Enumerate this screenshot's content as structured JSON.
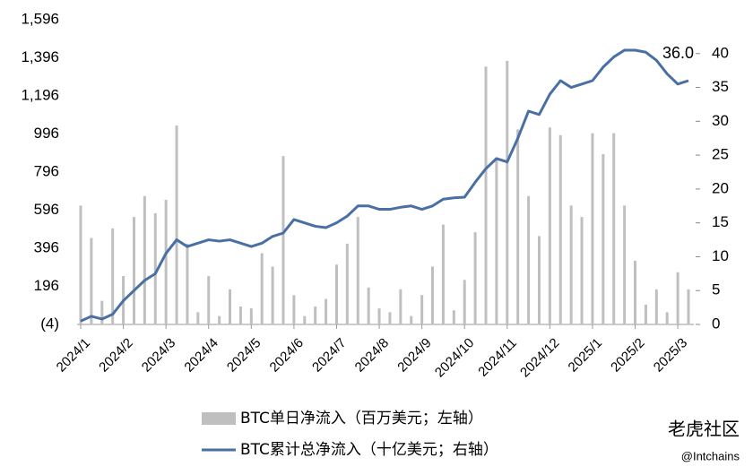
{
  "chart_data": {
    "type": "bar-line",
    "categories": [
      "2024/1",
      null,
      null,
      null,
      "2024/2",
      null,
      null,
      null,
      "2024/3",
      null,
      null,
      null,
      "2024/4",
      null,
      null,
      null,
      "2024/5",
      null,
      null,
      null,
      "2024/6",
      null,
      null,
      null,
      "2024/7",
      null,
      null,
      null,
      "2024/8",
      null,
      null,
      null,
      "2024/9",
      null,
      null,
      null,
      "2024/10",
      null,
      null,
      null,
      "2024/11",
      null,
      null,
      null,
      "2024/12",
      null,
      null,
      null,
      "2025/1",
      null,
      null,
      null,
      "2025/2",
      null,
      null,
      null,
      "2025/3",
      null
    ],
    "series": [
      {
        "name": "BTC单日净流入（百万美元；左轴）",
        "type": "bar",
        "color": "#bfbfbf",
        "values": [
          620,
          450,
          120,
          500,
          250,
          560,
          670,
          580,
          650,
          1040,
          420,
          60,
          250,
          40,
          180,
          90,
          80,
          370,
          300,
          880,
          150,
          40,
          90,
          130,
          310,
          420,
          560,
          190,
          80,
          60,
          180,
          40,
          150,
          300,
          520,
          70,
          230,
          480,
          1350,
          870,
          1380,
          1020,
          670,
          460,
          1030,
          990,
          620,
          560,
          1000,
          890,
          1000,
          620,
          330,
          100,
          180,
          60,
          270,
          180
        ]
      },
      {
        "name": "BTC累计总净流入（十亿美元；右轴）",
        "type": "line",
        "axis": "y2",
        "color": "#4a6fa5",
        "values": [
          0.5,
          1.2,
          0.8,
          1.5,
          3.5,
          5.0,
          6.5,
          7.5,
          10.5,
          12.5,
          11.5,
          12.0,
          12.5,
          12.3,
          12.5,
          12.0,
          11.5,
          12.0,
          13.0,
          13.5,
          15.5,
          15.0,
          14.5,
          14.3,
          15.0,
          16.0,
          17.5,
          17.5,
          17.0,
          17.0,
          17.3,
          17.5,
          17.0,
          17.5,
          18.5,
          18.7,
          18.8,
          21.0,
          23.0,
          24.5,
          24.0,
          27.5,
          31.5,
          31.0,
          34.0,
          36.0,
          35.0,
          35.5,
          36.0,
          38.0,
          39.5,
          40.5,
          40.5,
          40.2,
          39.0,
          37.0,
          35.5,
          36.0
        ],
        "value_labels": [
          null,
          null,
          null,
          null,
          null,
          null,
          null,
          null,
          null,
          null,
          null,
          null,
          null,
          null,
          null,
          null,
          null,
          null,
          null,
          null,
          null,
          null,
          null,
          null,
          null,
          null,
          null,
          null,
          null,
          null,
          null,
          null,
          null,
          null,
          null,
          null,
          null,
          null,
          null,
          null,
          null,
          null,
          null,
          null,
          null,
          null,
          null,
          null,
          null,
          null,
          null,
          null,
          null,
          null,
          null,
          null,
          null,
          "36.0"
        ]
      }
    ],
    "ylim": [
      -4,
      1596
    ],
    "yticks": [
      {
        "value": -4,
        "label": "(4)",
        "color": "#c00000"
      },
      196,
      396,
      596,
      796,
      996,
      {
        "value": 1196,
        "label": "1,196"
      },
      {
        "value": 1396,
        "label": "1,396"
      },
      {
        "value": 1596,
        "label": "1,596"
      }
    ],
    "y2lim": [
      0,
      45
    ],
    "y2ticks": [
      0,
      5,
      10,
      15,
      20,
      25,
      30,
      35,
      40
    ],
    "grid": false,
    "legend": "bottom",
    "watermark": [
      "老虎社区",
      "@Intchains"
    ]
  }
}
